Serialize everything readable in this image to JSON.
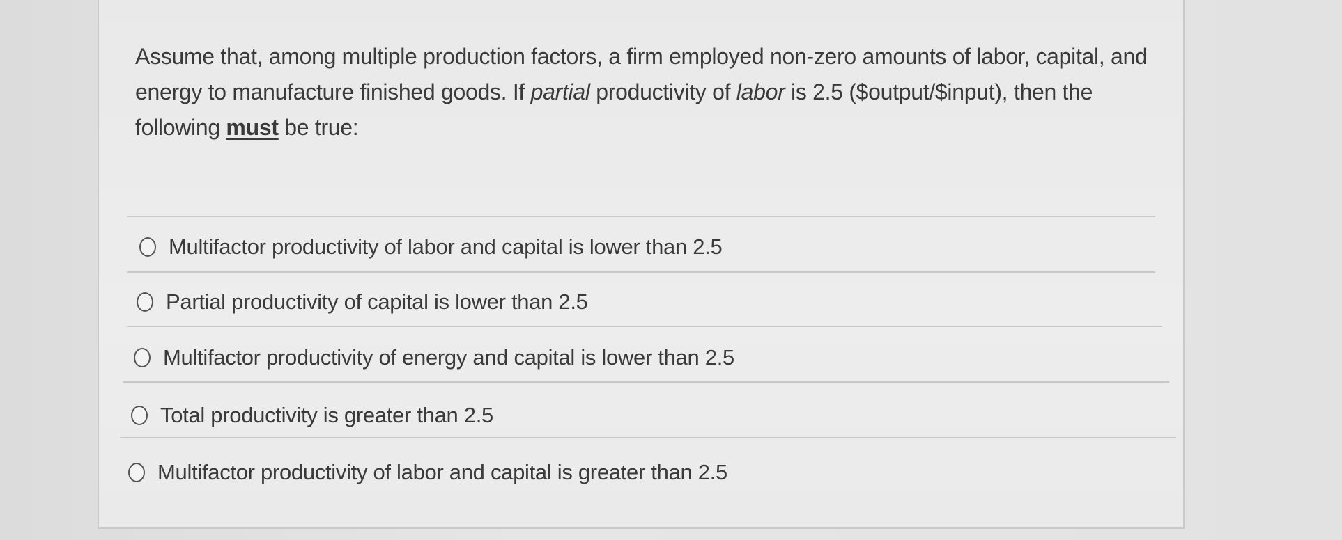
{
  "question": {
    "part1": "Assume that, among multiple production factors, a firm employed non-zero amounts of labor, capital, and energy to manufacture finished goods. If ",
    "italic1": "partial",
    "part2": " productivity of ",
    "italic2": "labor",
    "part3": " is 2.5 ($output/$input), then the following ",
    "emphasis": "must",
    "part4": " be true:"
  },
  "options": [
    {
      "label": "Multifactor productivity of labor and capital is lower than 2.5",
      "selected": false
    },
    {
      "label": "Partial productivity of capital is lower than 2.5",
      "selected": false
    },
    {
      "label": "Multifactor productivity of energy and capital is lower than 2.5",
      "selected": false
    },
    {
      "label": "Total productivity is greater than 2.5",
      "selected": false
    },
    {
      "label": "Multifactor productivity of labor and capital is greater than 2.5",
      "selected": false
    }
  ]
}
